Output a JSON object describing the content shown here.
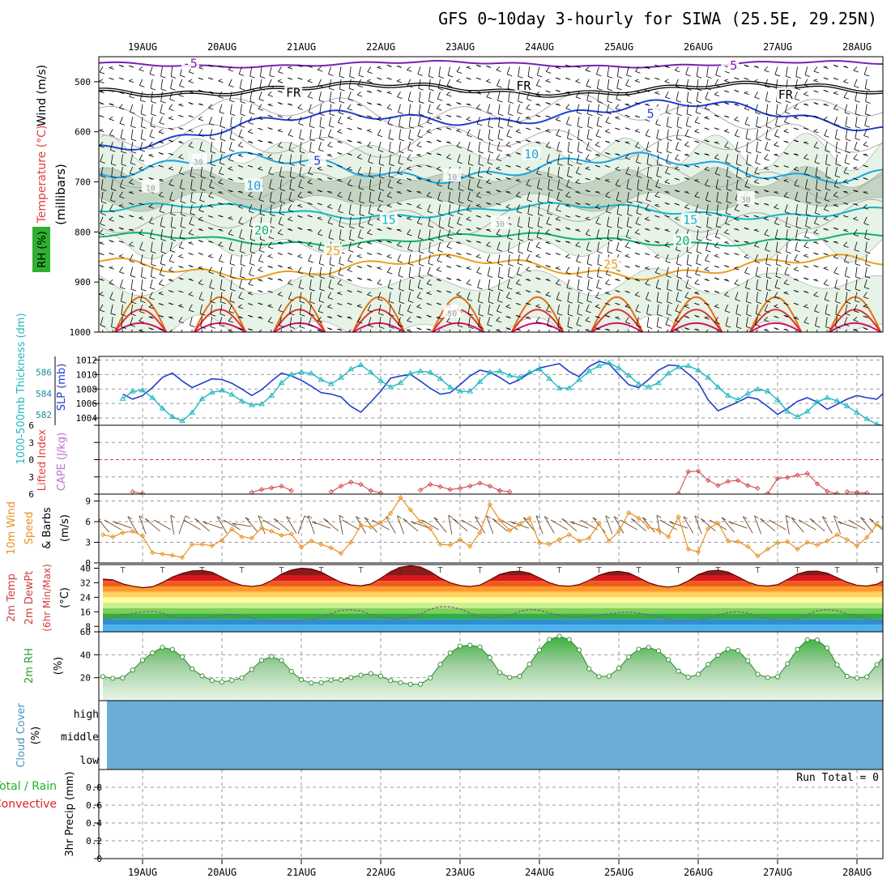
{
  "title": "GFS 0~10day 3-hourly for SIWA (25.5E, 29.25N)",
  "dates": [
    "19AUG",
    "20AUG",
    "21AUG",
    "22AUG",
    "23AUG",
    "24AUG",
    "25AUG",
    "26AUG",
    "27AUG",
    "28AUG"
  ],
  "colors": {
    "purple": "#7a1fb0",
    "black": "#000000",
    "blue": "#1f3fcf",
    "lightblue": "#1da3e0",
    "teal": "#13b5c5",
    "green": "#10b070",
    "orange": "#e8a020",
    "darkorange": "#e07010",
    "red": "#e03030",
    "magenta": "#d0106a",
    "rh_fill": "#e6f3e6",
    "rh_dark": "#b7c9b7",
    "slp": "#1f3fcf",
    "thick": "#20b8c0",
    "wind": "#e89020",
    "cloud": "#6aaed6",
    "precip_green": "#20b020",
    "precip_red": "#e02020"
  },
  "chart_data": [
    {
      "id": "upper_air",
      "type": "contour",
      "ylabel_parts": {
        "wind": "Wind (m/s)",
        "temp": "Temperature (°C)",
        "rh": "RH (%)",
        "pres": "(millibars)"
      },
      "ylim": [
        1000,
        450
      ],
      "y_ticks": [
        500,
        600,
        700,
        800,
        900,
        1000
      ],
      "contour_labels": [
        {
          "text": "-5",
          "x": 0.6,
          "p": 464,
          "color": "purple"
        },
        {
          "text": "-5",
          "x": 7.4,
          "p": 468,
          "color": "purple"
        },
        {
          "text": "FR",
          "x": 1.9,
          "p": 522,
          "color": "black"
        },
        {
          "text": "FR",
          "x": 4.8,
          "p": 508,
          "color": "black"
        },
        {
          "text": "FR",
          "x": 8.1,
          "p": 526,
          "color": "black"
        },
        {
          "text": "5",
          "x": 2.2,
          "p": 658,
          "color": "blue"
        },
        {
          "text": "5",
          "x": 6.4,
          "p": 564,
          "color": "blue"
        },
        {
          "text": "10",
          "x": 1.4,
          "p": 708,
          "color": "lightblue"
        },
        {
          "text": "10",
          "x": 4.9,
          "p": 645,
          "color": "lightblue"
        },
        {
          "text": "15",
          "x": 3.1,
          "p": 776,
          "color": "teal"
        },
        {
          "text": "15",
          "x": 6.9,
          "p": 776,
          "color": "teal"
        },
        {
          "text": "20",
          "x": 1.5,
          "p": 797,
          "color": "green"
        },
        {
          "text": "20",
          "x": 6.8,
          "p": 818,
          "color": "green"
        },
        {
          "text": "25",
          "x": 2.4,
          "p": 838,
          "color": "orange"
        },
        {
          "text": "25",
          "x": 5.9,
          "p": 865,
          "color": "orange"
        },
        {
          "text": "30",
          "x": 0.7,
          "p": 658,
          "color": "grey"
        },
        {
          "text": "10",
          "x": 0.1,
          "p": 710,
          "color": "grey"
        },
        {
          "text": "10",
          "x": 3.9,
          "p": 688,
          "color": "grey"
        },
        {
          "text": "30",
          "x": 4.5,
          "p": 782,
          "color": "grey"
        },
        {
          "text": "30",
          "x": 7.6,
          "p": 733,
          "color": "grey"
        },
        {
          "text": "50",
          "x": 3.9,
          "p": 960,
          "color": "grey"
        }
      ]
    },
    {
      "id": "slp_thickness",
      "type": "line",
      "left_label": "1000-500mb Thickness (dm)",
      "right_label": "SLP (mb)",
      "ylim_left": [
        581,
        587.5
      ],
      "ticks_left": [
        582,
        584,
        586
      ],
      "ylim_right": [
        1003,
        1012.5
      ],
      "ticks_right": [
        1004,
        1006,
        1008,
        1010,
        1012
      ],
      "series": [
        {
          "key": "slp",
          "x0": -0.25,
          "dx": 0.125,
          "values": [
            1007.3,
            1006.6,
            1007.1,
            1008.2,
            1009.6,
            1010.2,
            1009.1,
            1008.2,
            1008.8,
            1009.4,
            1009.3,
            1008.8,
            1008.0,
            1007.1,
            1007.9,
            1009.1,
            1010.2,
            1009.8,
            1009.2,
            1008.4,
            1007.5,
            1007.3,
            1006.9,
            1005.6,
            1004.8,
            1006.2,
            1007.7,
            1009.5,
            1009.8,
            1010.0,
            1009.1,
            1008.1,
            1007.3,
            1007.5,
            1008.6,
            1009.8,
            1010.6,
            1010.3,
            1009.6,
            1008.7,
            1009.3,
            1010.2,
            1010.9,
            1011.2,
            1011.5,
            1010.4,
            1009.7,
            1011.1,
            1011.8,
            1011.5,
            1010.0,
            1008.6,
            1008.2,
            1009.3,
            1010.6,
            1011.3,
            1011.2,
            1010.1,
            1008.9,
            1006.5,
            1005.0,
            1005.6,
            1006.2,
            1006.9,
            1006.6,
            1005.6,
            1004.5,
            1005.3,
            1006.3,
            1006.8,
            1006.2,
            1005.2,
            1005.9,
            1006.6,
            1007.1,
            1006.8,
            1006.6,
            1007.8,
            1008.3,
            1008.3,
            1009.1,
            1010.6
          ]
        },
        {
          "key": "thick",
          "x0": -0.25,
          "dx": 0.125,
          "values": [
            583.5,
            584.2,
            584.3,
            583.6,
            582.6,
            581.8,
            581.4,
            582.2,
            583.5,
            584.1,
            584.3,
            583.9,
            583.3,
            582.9,
            583.0,
            583.8,
            585.0,
            585.8,
            586.0,
            585.9,
            585.3,
            584.9,
            585.5,
            586.3,
            586.7,
            586.0,
            585.2,
            584.6,
            585.0,
            585.9,
            586.1,
            586.0,
            585.4,
            584.6,
            584.2,
            584.2,
            585.1,
            586.0,
            586.1,
            585.7,
            585.5,
            586.0,
            586.3,
            585.4,
            584.5,
            584.5,
            585.3,
            586.1,
            586.6,
            586.9,
            586.4,
            585.7,
            584.9,
            584.6,
            585.0,
            585.9,
            586.5,
            586.6,
            586.2,
            585.5,
            584.6,
            583.8,
            583.4,
            584.0,
            584.4,
            584.2,
            583.4,
            582.3,
            581.8,
            582.3,
            583.2,
            583.6,
            583.3,
            582.8,
            582.2,
            581.6,
            581.1,
            580.9,
            580.9,
            581.0
          ]
        }
      ]
    },
    {
      "id": "cape_li",
      "type": "line",
      "left_label": "Lifted Index",
      "right_label": "CAPE (J/kg)",
      "ylim": [
        -6,
        6
      ],
      "ticks": [
        -6,
        -3,
        0,
        3,
        6
      ],
      "tick_labels": [
        "6",
        "3",
        "0",
        "3",
        "6"
      ],
      "li_segments": [
        {
          "x0": -0.125,
          "dx": 0.125,
          "values": [
            5.6,
            5.9
          ]
        },
        {
          "x0": 1.375,
          "dx": 0.125,
          "values": [
            5.7,
            5.2,
            4.9,
            4.6,
            5.4
          ]
        },
        {
          "x0": 2.375,
          "dx": 0.125,
          "values": [
            5.6,
            4.6,
            3.9,
            4.3,
            5.4,
            5.8
          ]
        },
        {
          "x0": 3.5,
          "dx": 0.125,
          "values": [
            5.3,
            4.3,
            4.7,
            5.2,
            5.0,
            4.6,
            4.1,
            4.6,
            5.4
          ]
        },
        {
          "x0": 4.5,
          "dx": 0.125,
          "values": [
            5.4,
            5.6
          ]
        },
        {
          "x0": 6.75,
          "dx": 0.125,
          "values": [
            5.9,
            2.1,
            2.0,
            3.6,
            4.5,
            3.8,
            3.6,
            4.5,
            5.0
          ]
        },
        {
          "x0": 7.875,
          "dx": 0.125,
          "values": [
            5.9,
            3.3,
            3.1,
            2.7,
            2.4,
            4.2,
            5.5,
            5.9
          ]
        },
        {
          "x0": 8.875,
          "dx": 0.125,
          "values": [
            5.6,
            5.7,
            5.8
          ]
        }
      ]
    },
    {
      "id": "wind10m",
      "type": "line",
      "left_label": "10m Wind",
      "mid_label": "Speed",
      "right_label": "& Barbs",
      "unit": "(m/s)",
      "ylim": [
        0,
        10
      ],
      "ticks": [
        0,
        3,
        6,
        9
      ],
      "series": [
        {
          "key": "wind",
          "x0": -0.5,
          "dx": 0.125,
          "values": [
            4.1,
            3.8,
            4.4,
            4.6,
            3.9,
            1.5,
            1.3,
            1.1,
            0.8,
            2.7,
            2.7,
            2.5,
            3.3,
            4.9,
            3.8,
            3.6,
            5.1,
            4.6,
            4.0,
            4.2,
            2.3,
            3.2,
            2.7,
            2.2,
            1.4,
            3.0,
            5.5,
            5.2,
            5.8,
            7.2,
            9.5,
            7.7,
            6.0,
            5.0,
            2.7,
            2.6,
            3.4,
            2.4,
            4.4,
            8.5,
            6.2,
            4.7,
            5.6,
            6.5,
            2.9,
            2.7,
            3.4,
            4.1,
            3.2,
            3.6,
            5.7,
            3.2,
            4.6,
            7.3,
            6.5,
            5.2,
            4.8,
            3.8,
            6.7,
            2.0,
            1.6,
            5.0,
            5.8,
            3.2,
            3.1,
            2.4,
            1.0,
            2.0,
            2.9,
            3.1,
            2.0,
            3.0,
            2.6,
            3.2,
            4.1,
            3.4,
            2.5,
            3.7,
            5.6,
            4.8,
            4.2,
            6.4,
            3.1
          ]
        }
      ],
      "barbs_x0": -0.5,
      "barbs_dx": 0.125,
      "barb_dirs": [
        320,
        300,
        290,
        330,
        340,
        310,
        300,
        350,
        20,
        300,
        310,
        290,
        330,
        300,
        280,
        320,
        340,
        300,
        310,
        330,
        20,
        340,
        290,
        310,
        350,
        300,
        330,
        320,
        300,
        330,
        340,
        310,
        290,
        300,
        320,
        350,
        310,
        300,
        330,
        340,
        310,
        300,
        290,
        320,
        340,
        330,
        300,
        310,
        290,
        300,
        320,
        340,
        330,
        300,
        310,
        320,
        350,
        300,
        290,
        330,
        340,
        310,
        300,
        320,
        290,
        330,
        340,
        310,
        300,
        350,
        320,
        300,
        310,
        330,
        340,
        290,
        300,
        320,
        310,
        330,
        340,
        300,
        310
      ]
    },
    {
      "id": "temp2m",
      "type": "area",
      "left_label": "2m Temp",
      "mid_label": "2m DewPt",
      "right_label": "(6hr Min/Max)",
      "unit": "(°C)",
      "ylim": [
        5,
        42
      ],
      "ticks": [
        8,
        16,
        24,
        32,
        40
      ],
      "bands": [
        {
          "from": 36,
          "to": 42,
          "color": "#8b1a1a"
        },
        {
          "from": 33,
          "to": 36,
          "color": "#d7191c"
        },
        {
          "from": 30,
          "to": 33,
          "color": "#f05a1e"
        },
        {
          "from": 27,
          "to": 30,
          "color": "#fd9a2c"
        },
        {
          "from": 24,
          "to": 27,
          "color": "#ffd05c"
        },
        {
          "from": 21,
          "to": 24,
          "color": "#ffffa0"
        },
        {
          "from": 18,
          "to": 21,
          "color": "#c8f08c"
        },
        {
          "from": 15,
          "to": 18,
          "color": "#7ed05a"
        },
        {
          "from": 12,
          "to": 15,
          "color": "#30b040"
        },
        {
          "from": 9,
          "to": 12,
          "color": "#2f90d0"
        },
        {
          "from": 5,
          "to": 9,
          "color": "#4fb0f0"
        }
      ],
      "temp_series": {
        "x0": -0.5,
        "dx": 0.125,
        "values": [
          34,
          33.6,
          31.4,
          30.1,
          29.3,
          29.8,
          32.1,
          35.1,
          37.2,
          38.5,
          38.8,
          37.8,
          35.1,
          32.3,
          30.6,
          30.0,
          30.7,
          33.2,
          36.8,
          39.0,
          40.0,
          39.6,
          37.9,
          34.9,
          32.2,
          30.8,
          30.3,
          31.3,
          34.4,
          38.1,
          40.5,
          41.4,
          40.7,
          38.1,
          34.6,
          32.0,
          30.5,
          29.9,
          30.7,
          33.5,
          36.6,
          38.0,
          38.4,
          37.3,
          34.7,
          32.0,
          30.4,
          30.1,
          31.0,
          33.3,
          36.2,
          37.8,
          38.3,
          37.4,
          34.8,
          32.0,
          30.3,
          29.6,
          30.5,
          33.0,
          36.5,
          38.4,
          38.9,
          37.9,
          35.3,
          32.4,
          30.6,
          30.2,
          30.9,
          33.8,
          36.8,
          38.3,
          38.4,
          37.3,
          34.8,
          32.3,
          30.6,
          30.2,
          31.2,
          34.0,
          37.2,
          38.7,
          38.4,
          36.4,
          33.2,
          31.0,
          29.4
        ]
      },
      "dew_series": {
        "x0": -0.5,
        "dx": 0.125,
        "values": [
          12,
          12.5,
          14.2,
          15.2,
          15.9,
          16.3,
          15.4,
          13.2,
          12.6,
          12.3,
          12.6,
          13.1,
          14.1,
          14.4,
          13.9,
          12.5,
          11.4,
          11.0,
          10.6,
          10.7,
          11.3,
          11.9,
          12.8,
          15.0,
          16.8,
          17.1,
          16.5,
          14.5,
          12.9,
          12.3,
          12.2,
          12.8,
          14.6,
          17.4,
          18.8,
          18.7,
          17.6,
          15.3,
          13.3,
          12.7,
          12.9,
          14.2,
          16.1,
          17.3,
          16.8,
          15.4,
          14.1,
          13.2,
          13.0,
          13.4,
          14.0,
          14.9,
          15.6,
          15.8,
          15.3,
          14.5,
          13.4,
          11.8,
          11.1,
          11.3,
          11.6,
          12.3,
          14.1,
          15.7,
          16.1,
          15.3,
          13.6,
          12.3,
          11.6,
          11.4,
          12.0,
          14.4,
          16.5,
          17.3,
          16.6,
          14.9,
          13.6,
          12.4,
          11.0,
          10.7,
          11.6,
          14.1,
          15.9,
          16.5,
          16.0,
          15.2,
          14.9
        ]
      },
      "bars_x": [
        0.0,
        1.0,
        2.0,
        3.0,
        4.0,
        5.0,
        6.0,
        7.0,
        8.0,
        9.0
      ]
    },
    {
      "id": "rh2m",
      "type": "area",
      "left_label": "2m RH",
      "unit": "(%)",
      "ylim": [
        0,
        60
      ],
      "ticks": [
        20,
        40,
        60
      ],
      "series": [
        {
          "key": "rh",
          "x0": -0.5,
          "dx": 0.125,
          "values": [
            21,
            19.5,
            19.8,
            26.7,
            35.3,
            41.7,
            46.4,
            44.6,
            38.2,
            27.7,
            21.6,
            17.6,
            16.2,
            17.7,
            19.8,
            27.2,
            35.2,
            38.4,
            35.1,
            25.5,
            18.2,
            15.5,
            15.8,
            17.9,
            18.1,
            20.1,
            22.2,
            23.6,
            21.3,
            17.5,
            15.7,
            14.3,
            14.4,
            19.8,
            31.6,
            41.6,
            47.6,
            48.3,
            46.8,
            37.5,
            24.5,
            20.3,
            21.2,
            31.8,
            44.1,
            53.3,
            56.1,
            53.3,
            44.2,
            27.8,
            21.0,
            21.4,
            28.1,
            38.1,
            44.8,
            46.5,
            43.4,
            35.7,
            25.7,
            20.5,
            22.9,
            31.6,
            39.5,
            44.9,
            43.6,
            34.9,
            23.0,
            20.2,
            20.8,
            32.2,
            44.7,
            53.1,
            52.9,
            45.8,
            31.3,
            21.2,
            19.8,
            20.8,
            31.4,
            40.6,
            45.9,
            43.3,
            34.5,
            24.8,
            19.9,
            23.0,
            32.8,
            42.9,
            44.9,
            41.2,
            38.6
          ]
        }
      ]
    },
    {
      "id": "cloud",
      "type": "heatmap",
      "left_label": "Cloud Cover",
      "unit": "(%)",
      "levels": [
        "high",
        "middle",
        "low"
      ]
    },
    {
      "id": "precip",
      "type": "bar",
      "left_label_total": "Total / Rain",
      "left_label_conv": "Convective",
      "unit": "3hr Precip (mm)",
      "ylim": [
        0,
        1
      ],
      "ticks": [
        0,
        0.2,
        0.4,
        0.6,
        0.8
      ],
      "tick_labels": [
        "0",
        "0.2",
        "0.4",
        "0.6",
        "0.8"
      ],
      "run_total": "Run Total = 0",
      "values": []
    }
  ]
}
